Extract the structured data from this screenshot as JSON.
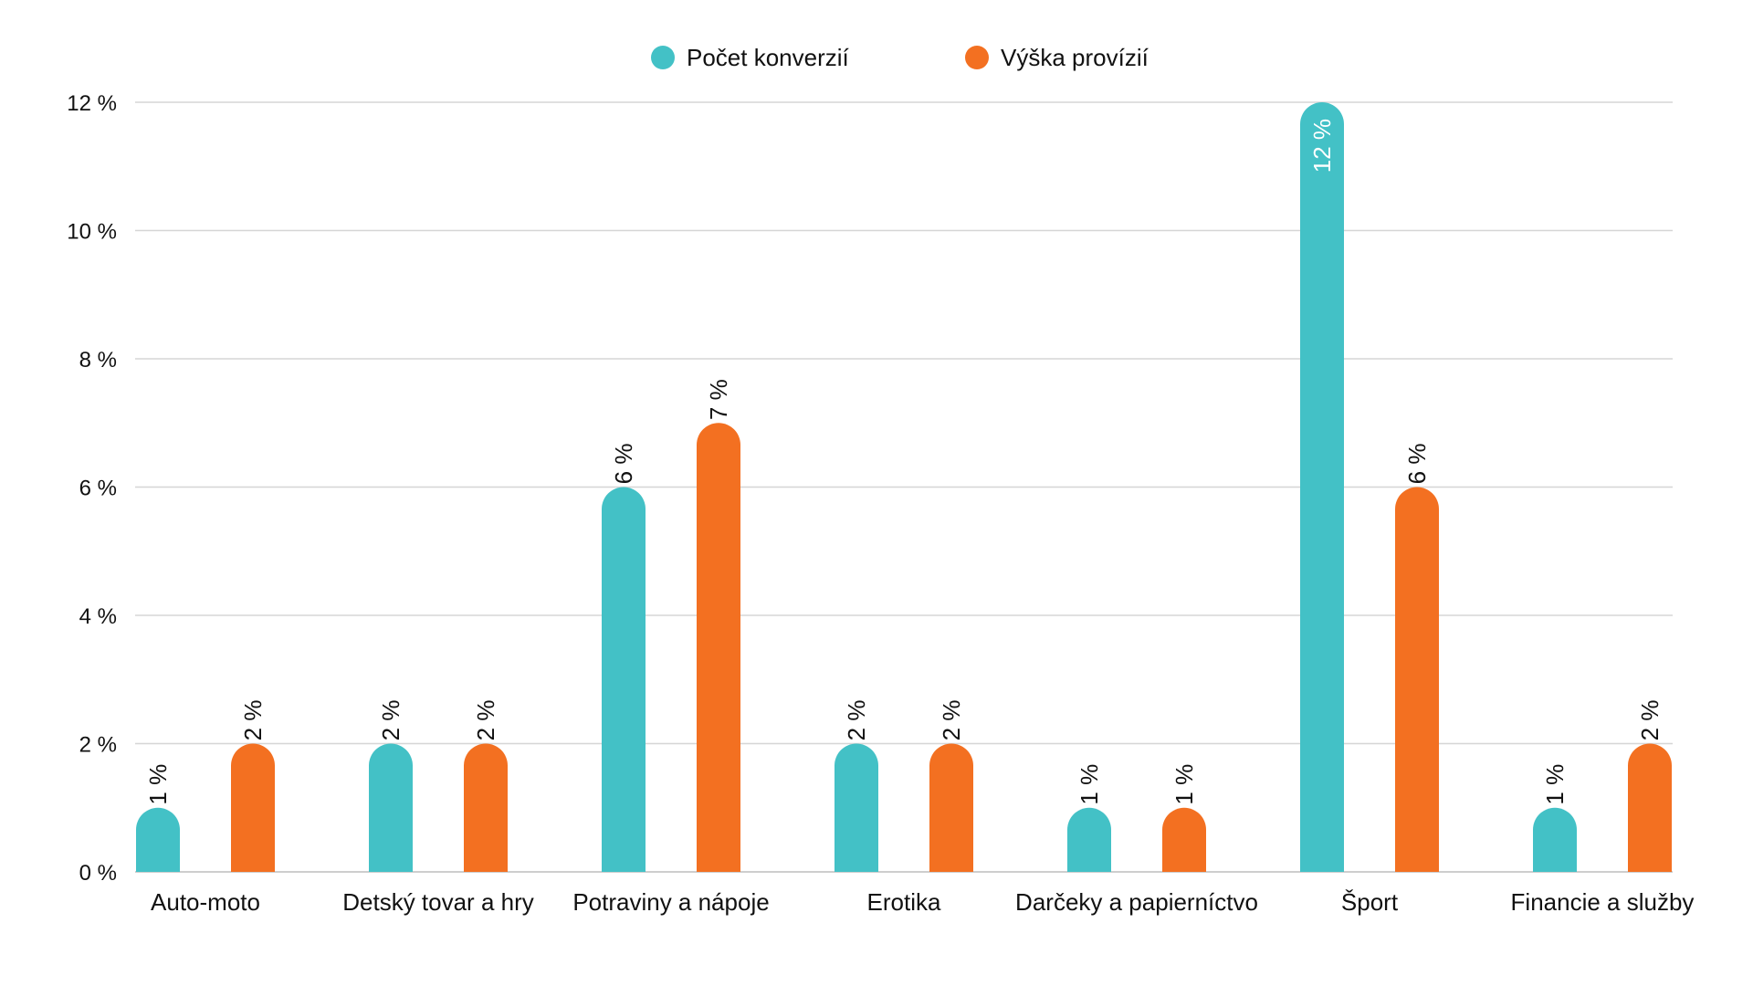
{
  "chart_data": {
    "type": "bar",
    "categories": [
      "Auto-moto",
      "Detský tovar a hry",
      "Potraviny a nápoje",
      "Erotika",
      "Darčeky a papierníctvo",
      "Šport",
      "Financie a služby"
    ],
    "series": [
      {
        "name": "Počet konverzií",
        "color": "#43c1c6",
        "values": [
          1,
          2,
          6,
          2,
          1,
          12,
          1
        ],
        "labels": [
          "1 %",
          "2 %",
          "6 %",
          "2 %",
          "1 %",
          "12 %",
          "1 %"
        ]
      },
      {
        "name": "Výška provízií",
        "color": "#f37021",
        "values": [
          2,
          2,
          7,
          2,
          1,
          6,
          2
        ],
        "labels": [
          "2 %",
          "2 %",
          "7 %",
          "2 %",
          "1 %",
          "6 %",
          "2 %"
        ]
      }
    ],
    "y_ticks": [
      0,
      2,
      4,
      6,
      8,
      10,
      12
    ],
    "y_tick_labels": [
      "0 %",
      "2 %",
      "4 %",
      "6 %",
      "8 %",
      "10 %",
      "12 %"
    ],
    "ylim": [
      0,
      12
    ],
    "grid": true,
    "legend_position": "top-center",
    "title": "",
    "xlabel": "",
    "ylabel": ""
  }
}
